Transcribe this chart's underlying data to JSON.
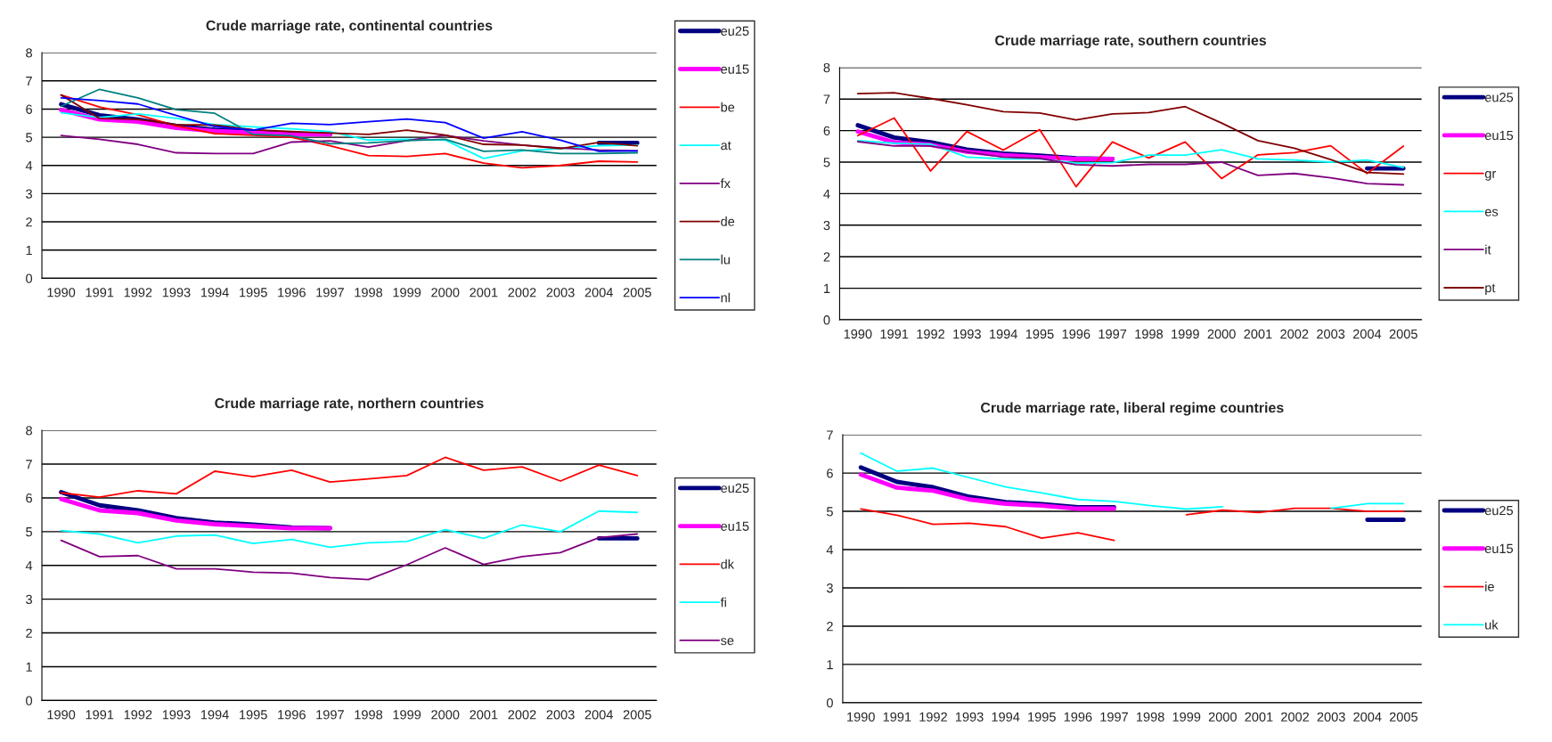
{
  "chart_data": [
    {
      "type": "line",
      "title": "Crude marriage rate, continental countries",
      "categories": [
        "1990",
        "1991",
        "1992",
        "1993",
        "1994",
        "1995",
        "1996",
        "1997",
        "1998",
        "1999",
        "2000",
        "2001",
        "2002",
        "2003",
        "2004",
        "2005"
      ],
      "ylim": [
        0,
        8
      ],
      "yticks": [
        0,
        1,
        2,
        3,
        4,
        5,
        6,
        7,
        8
      ],
      "grid": "y",
      "legend": "right",
      "series": [
        {
          "name": "eu25",
          "color": "#000080",
          "values": [
            6.17,
            5.78,
            5.63,
            5.4,
            5.27,
            5.21,
            5.12,
            5.1,
            null,
            null,
            null,
            null,
            null,
            null,
            4.8,
            4.8
          ]
        },
        {
          "name": "eu15",
          "color": "#ff00ff",
          "values": [
            5.97,
            5.63,
            5.55,
            5.33,
            5.22,
            5.16,
            5.1,
            5.1,
            null,
            null,
            null,
            null,
            null,
            null,
            null,
            null
          ]
        },
        {
          "name": "be",
          "color": "#ff0000",
          "values": [
            6.5,
            6.07,
            5.8,
            5.4,
            5.13,
            5.07,
            5.0,
            4.7,
            4.35,
            4.32,
            4.42,
            4.08,
            3.92,
            4.0,
            4.15,
            4.12
          ]
        },
        {
          "name": "at",
          "color": "#00ffff",
          "values": [
            5.87,
            5.7,
            5.83,
            5.67,
            5.45,
            5.37,
            5.3,
            5.2,
            4.9,
            4.93,
            4.9,
            4.25,
            4.52,
            4.6,
            4.7,
            4.72
          ]
        },
        {
          "name": "fx",
          "color": "#800080",
          "values": [
            5.06,
            4.93,
            4.75,
            4.45,
            4.42,
            4.42,
            4.83,
            4.87,
            4.65,
            4.88,
            5.07,
            4.87,
            4.72,
            4.62,
            4.55,
            4.52
          ]
        },
        {
          "name": "de",
          "color": "#800000",
          "values": [
            6.5,
            5.67,
            5.63,
            5.45,
            5.43,
            5.27,
            5.2,
            5.15,
            5.1,
            5.25,
            5.08,
            4.75,
            4.72,
            4.6,
            4.82,
            4.7
          ]
        },
        {
          "name": "lu",
          "color": "#008080",
          "values": [
            6.1,
            6.7,
            6.4,
            5.98,
            5.85,
            5.1,
            5.05,
            4.77,
            4.8,
            4.88,
            4.93,
            4.5,
            4.55,
            4.42,
            4.42,
            4.45
          ]
        },
        {
          "name": "nl",
          "color": "#0000ff",
          "values": [
            6.4,
            6.3,
            6.18,
            5.77,
            5.38,
            5.25,
            5.5,
            5.45,
            5.55,
            5.65,
            5.52,
            4.97,
            5.2,
            4.9,
            4.5,
            4.52
          ]
        }
      ]
    },
    {
      "type": "line",
      "title": "Crude marriage rate, southern countries",
      "categories": [
        "1990",
        "1991",
        "1992",
        "1993",
        "1994",
        "1995",
        "1996",
        "1997",
        "1998",
        "1999",
        "2000",
        "2001",
        "2002",
        "2003",
        "2004",
        "2005"
      ],
      "ylim": [
        0,
        8
      ],
      "yticks": [
        0,
        1,
        2,
        3,
        4,
        5,
        6,
        7,
        8
      ],
      "grid": "y",
      "legend": "right",
      "series": [
        {
          "name": "eu25",
          "color": "#000080",
          "values": [
            6.17,
            5.78,
            5.63,
            5.4,
            5.27,
            5.21,
            5.12,
            5.1,
            null,
            null,
            null,
            null,
            null,
            null,
            4.8,
            4.8
          ]
        },
        {
          "name": "eu15",
          "color": "#ff00ff",
          "values": [
            5.97,
            5.63,
            5.55,
            5.33,
            5.22,
            5.16,
            5.1,
            5.1,
            null,
            null,
            null,
            null,
            null,
            null,
            null,
            null
          ]
        },
        {
          "name": "gr",
          "color": "#ff0000",
          "values": [
            5.84,
            6.4,
            4.72,
            5.97,
            5.38,
            6.03,
            4.22,
            5.64,
            5.13,
            5.64,
            4.48,
            5.23,
            5.3,
            5.52,
            4.64,
            5.51
          ]
        },
        {
          "name": "es",
          "color": "#00ffff",
          "values": [
            5.68,
            5.6,
            5.57,
            5.16,
            5.1,
            5.1,
            4.97,
            4.98,
            5.22,
            5.22,
            5.39,
            5.1,
            5.07,
            5.0,
            5.07,
            4.83
          ]
        },
        {
          "name": "it",
          "color": "#800080",
          "values": [
            5.65,
            5.51,
            5.51,
            5.32,
            5.16,
            5.12,
            4.92,
            4.88,
            4.93,
            4.93,
            5.0,
            4.58,
            4.64,
            4.5,
            4.32,
            4.28
          ]
        },
        {
          "name": "pt",
          "color": "#800000",
          "values": [
            7.17,
            7.2,
            7.02,
            6.82,
            6.6,
            6.56,
            6.34,
            6.53,
            6.57,
            6.76,
            6.24,
            5.68,
            5.44,
            5.08,
            4.67,
            4.62
          ]
        }
      ]
    },
    {
      "type": "line",
      "title": "Crude marriage rate, northern countries",
      "categories": [
        "1990",
        "1991",
        "1992",
        "1993",
        "1994",
        "1995",
        "1996",
        "1997",
        "1998",
        "1999",
        "2000",
        "2001",
        "2002",
        "2003",
        "2004",
        "2005"
      ],
      "ylim": [
        0,
        8
      ],
      "yticks": [
        0,
        1,
        2,
        3,
        4,
        5,
        6,
        7,
        8
      ],
      "grid": "y",
      "legend": "right",
      "series": [
        {
          "name": "eu25",
          "color": "#000080",
          "values": [
            6.17,
            5.78,
            5.63,
            5.4,
            5.27,
            5.21,
            5.12,
            5.1,
            null,
            null,
            null,
            null,
            null,
            null,
            4.8,
            4.8
          ]
        },
        {
          "name": "eu15",
          "color": "#ff00ff",
          "values": [
            5.97,
            5.63,
            5.55,
            5.33,
            5.22,
            5.16,
            5.1,
            5.1,
            null,
            null,
            null,
            null,
            null,
            null,
            null,
            null
          ]
        },
        {
          "name": "dk",
          "color": "#ff0000",
          "values": [
            6.15,
            6.02,
            6.21,
            6.12,
            6.79,
            6.63,
            6.82,
            6.47,
            6.56,
            6.66,
            7.2,
            6.82,
            6.92,
            6.5,
            6.97,
            6.66
          ]
        },
        {
          "name": "fi",
          "color": "#00ffff",
          "values": [
            5.03,
            4.93,
            4.67,
            4.87,
            4.9,
            4.65,
            4.77,
            4.54,
            4.67,
            4.71,
            5.06,
            4.8,
            5.2,
            5.0,
            5.61,
            5.57
          ]
        },
        {
          "name": "se",
          "color": "#800080",
          "values": [
            4.74,
            4.26,
            4.29,
            3.9,
            3.9,
            3.8,
            3.77,
            3.64,
            3.58,
            4.02,
            4.52,
            4.03,
            4.26,
            4.38,
            4.82,
            4.93
          ]
        }
      ]
    },
    {
      "type": "line",
      "title": "Crude marriage rate, liberal regime countries",
      "categories": [
        "1990",
        "1991",
        "1992",
        "1993",
        "1994",
        "1995",
        "1996",
        "1997",
        "1998",
        "1999",
        "2000",
        "2001",
        "2002",
        "2003",
        "2004",
        "2005"
      ],
      "ylim": [
        0,
        7
      ],
      "yticks": [
        0,
        1,
        2,
        3,
        4,
        5,
        6,
        7
      ],
      "grid": "y",
      "legend": "right",
      "series": [
        {
          "name": "eu25",
          "color": "#000080",
          "values": [
            6.15,
            5.77,
            5.63,
            5.38,
            5.24,
            5.19,
            5.11,
            5.11,
            null,
            null,
            null,
            null,
            null,
            null,
            4.78,
            4.78
          ]
        },
        {
          "name": "eu15",
          "color": "#ff00ff",
          "values": [
            5.96,
            5.62,
            5.54,
            5.31,
            5.2,
            5.15,
            5.07,
            5.07,
            null,
            null,
            null,
            null,
            null,
            null,
            null,
            null
          ]
        },
        {
          "name": "ie",
          "color": "#ff0000",
          "values": [
            5.06,
            4.9,
            4.66,
            4.69,
            4.6,
            4.3,
            4.44,
            4.24,
            null,
            4.91,
            5.03,
            4.97,
            5.08,
            5.08,
            5.0,
            5.0
          ]
        },
        {
          "name": "uk",
          "color": "#00ffff",
          "values": [
            6.52,
            6.05,
            6.13,
            5.88,
            5.64,
            5.48,
            5.31,
            5.26,
            5.15,
            5.06,
            5.12,
            null,
            null,
            5.08,
            5.2,
            5.2
          ]
        }
      ]
    }
  ]
}
